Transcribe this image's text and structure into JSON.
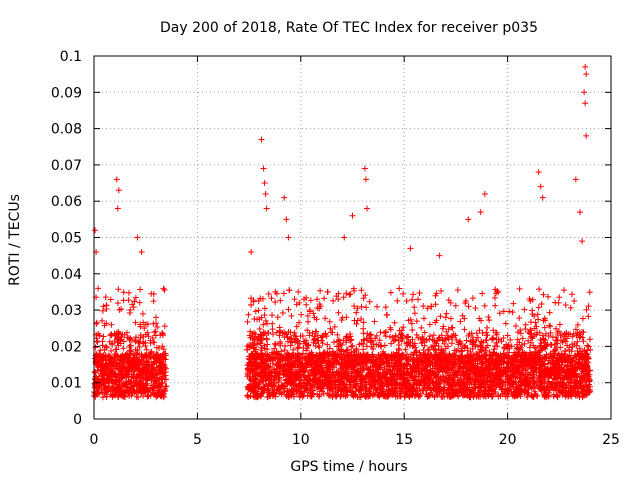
{
  "chart_data": {
    "type": "scatter",
    "title": "Day 200 of 2018, Rate Of TEC Index for receiver p035",
    "xlabel": "GPS time / hours",
    "ylabel": "ROTI / TECUs",
    "xlim": [
      0,
      25
    ],
    "ylim": [
      0,
      0.1
    ],
    "x_ticks": [
      "0",
      "5",
      "10",
      "15",
      "20",
      "25"
    ],
    "y_ticks": [
      "0",
      "0.01",
      "0.02",
      "0.03",
      "0.04",
      "0.05",
      "0.06",
      "0.07",
      "0.08",
      "0.09",
      "0.1"
    ],
    "grid": true,
    "marker": "+",
    "color": "#ff0000",
    "coverage_segments_hours": [
      [
        0.0,
        3.5
      ],
      [
        7.4,
        24.0
      ]
    ],
    "peak_points": [
      {
        "x": 0.05,
        "y": 0.052
      },
      {
        "x": 0.1,
        "y": 0.046
      },
      {
        "x": 0.2,
        "y": 0.036
      },
      {
        "x": 1.1,
        "y": 0.066
      },
      {
        "x": 1.2,
        "y": 0.063
      },
      {
        "x": 1.15,
        "y": 0.058
      },
      {
        "x": 2.1,
        "y": 0.05
      },
      {
        "x": 2.3,
        "y": 0.046
      },
      {
        "x": 3.0,
        "y": 0.028
      },
      {
        "x": 7.6,
        "y": 0.046
      },
      {
        "x": 8.1,
        "y": 0.077
      },
      {
        "x": 8.2,
        "y": 0.069
      },
      {
        "x": 8.25,
        "y": 0.065
      },
      {
        "x": 8.3,
        "y": 0.062
      },
      {
        "x": 8.35,
        "y": 0.058
      },
      {
        "x": 9.2,
        "y": 0.061
      },
      {
        "x": 9.3,
        "y": 0.055
      },
      {
        "x": 9.4,
        "y": 0.05
      },
      {
        "x": 12.1,
        "y": 0.05
      },
      {
        "x": 12.5,
        "y": 0.056
      },
      {
        "x": 13.1,
        "y": 0.069
      },
      {
        "x": 13.15,
        "y": 0.066
      },
      {
        "x": 13.2,
        "y": 0.058
      },
      {
        "x": 15.3,
        "y": 0.047
      },
      {
        "x": 16.7,
        "y": 0.045
      },
      {
        "x": 18.1,
        "y": 0.055
      },
      {
        "x": 18.9,
        "y": 0.062
      },
      {
        "x": 18.7,
        "y": 0.057
      },
      {
        "x": 21.5,
        "y": 0.068
      },
      {
        "x": 21.6,
        "y": 0.064
      },
      {
        "x": 21.7,
        "y": 0.061
      },
      {
        "x": 23.3,
        "y": 0.066
      },
      {
        "x": 23.5,
        "y": 0.057
      },
      {
        "x": 23.75,
        "y": 0.097
      },
      {
        "x": 23.8,
        "y": 0.095
      },
      {
        "x": 23.7,
        "y": 0.09
      },
      {
        "x": 23.75,
        "y": 0.087
      },
      {
        "x": 23.8,
        "y": 0.078
      },
      {
        "x": 23.6,
        "y": 0.049
      }
    ]
  }
}
